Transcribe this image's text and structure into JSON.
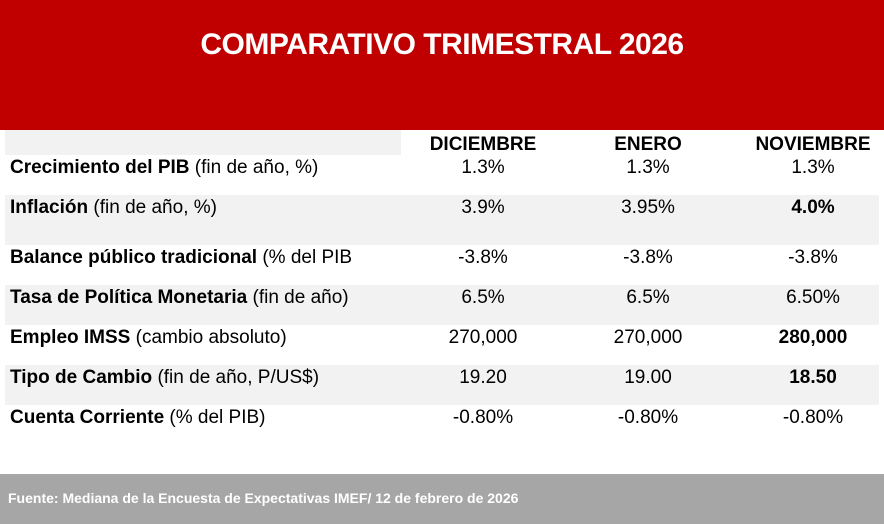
{
  "title": "COMPARATIVO TRIMESTRAL 2026",
  "columns": [
    "DICIEMBRE",
    "ENERO",
    "NOVIEMBRE"
  ],
  "rows": [
    {
      "label_bold": "Crecimiento del PIB",
      "label_rest": " (fin de año, %)",
      "values": [
        "1.3%",
        "1.3%",
        "1.3%"
      ],
      "bold_last": false
    },
    {
      "label_bold": "Inflación",
      "label_rest": " (fin de año, %)",
      "values": [
        "3.9%",
        "3.95%",
        "4.0%"
      ],
      "bold_last": true
    },
    {
      "label_bold": "Balance público tradicional",
      "label_rest": " (% del PIB",
      "values": [
        "-3.8%",
        "-3.8%",
        "-3.8%"
      ],
      "bold_last": false
    },
    {
      "label_bold": "Tasa de Política Monetaria",
      "label_rest": " (fin de año)",
      "values": [
        "6.5%",
        "6.5%",
        "6.50%"
      ],
      "bold_last": false
    },
    {
      "label_bold": "Empleo IMSS",
      "label_rest": " (cambio absoluto)",
      "values": [
        "270,000",
        "270,000",
        "280,000"
      ],
      "bold_last": true
    },
    {
      "label_bold": "Tipo de Cambio",
      "label_rest": " (fin de año, P/US$)",
      "values": [
        "19.20",
        "19.00",
        "18.50"
      ],
      "bold_last": true
    },
    {
      "label_bold": "Cuenta Corriente",
      "label_rest": " (% del PIB)",
      "values": [
        "-0.80%",
        "-0.80%",
        "-0.80%"
      ],
      "bold_last": false
    }
  ],
  "footer": "Fuente: Mediana de la Encuesta de Expectativas IMEF/ 12 de febrero de 2026",
  "colors": {
    "banner": "#c00000",
    "band": "#f2f2f2",
    "footer": "#a6a6a6"
  }
}
